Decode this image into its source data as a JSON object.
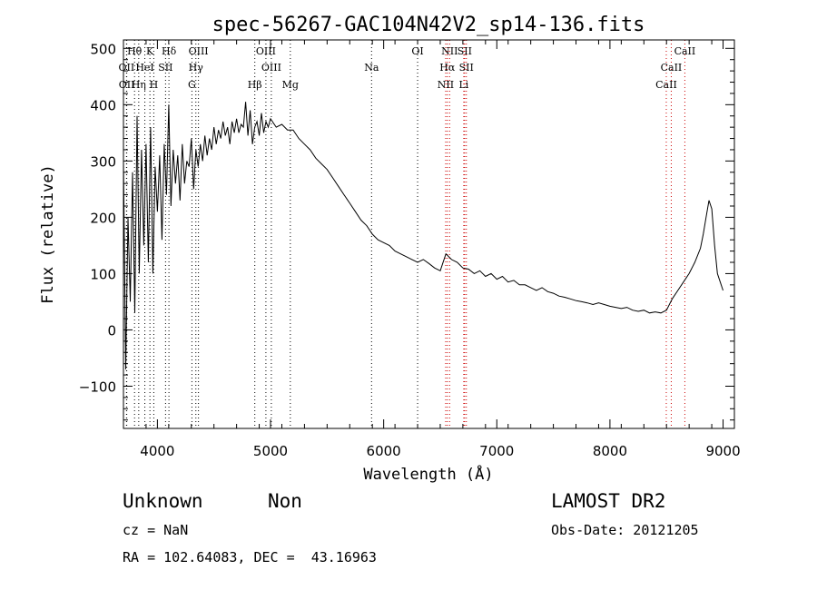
{
  "chart_data": {
    "type": "line",
    "title": "spec-56267-GAC104N42V2_sp14-136.fits",
    "xlabel": "Wavelength (Å)",
    "ylabel": "Flux (relative)",
    "xlim": [
      3700,
      9100
    ],
    "ylim": [
      -175,
      515
    ],
    "xticks": [
      4000,
      5000,
      6000,
      7000,
      8000,
      9000
    ],
    "xtick_labels": [
      "4000",
      "5000",
      "6000",
      "7000",
      "8000",
      "9000"
    ],
    "yticks": [
      -100,
      0,
      100,
      200,
      300,
      400,
      500
    ],
    "ytick_labels": [
      "−100",
      "0",
      "100",
      "200",
      "300",
      "400",
      "500"
    ],
    "grid": false,
    "line_color": "#000000",
    "marker_color_black": "#000000",
    "marker_color_red": "#cc0000",
    "series": [
      {
        "x": [
          3700,
          3720,
          3740,
          3760,
          3780,
          3800,
          3820,
          3840,
          3860,
          3880,
          3900,
          3920,
          3940,
          3960,
          3980,
          4000,
          4020,
          4040,
          4060,
          4080,
          4100,
          4120,
          4140,
          4160,
          4180,
          4200,
          4220,
          4240,
          4260,
          4280,
          4300,
          4320,
          4340,
          4360,
          4380,
          4400,
          4420,
          4440,
          4460,
          4480,
          4500,
          4520,
          4540,
          4560,
          4580,
          4600,
          4620,
          4640,
          4660,
          4680,
          4700,
          4720,
          4740,
          4760,
          4780,
          4800,
          4820,
          4840,
          4860,
          4880,
          4900,
          4920,
          4940,
          4960,
          4980,
          5000,
          5050,
          5100,
          5150,
          5200,
          5250,
          5300,
          5350,
          5400,
          5450,
          5500,
          5550,
          5600,
          5650,
          5700,
          5750,
          5800,
          5850,
          5900,
          5950,
          6000,
          6050,
          6100,
          6150,
          6200,
          6250,
          6300,
          6350,
          6400,
          6450,
          6500,
          6550,
          6600,
          6650,
          6700,
          6750,
          6800,
          6850,
          6900,
          6950,
          7000,
          7050,
          7100,
          7150,
          7200,
          7250,
          7300,
          7350,
          7400,
          7450,
          7500,
          7550,
          7600,
          7650,
          7700,
          7750,
          7800,
          7850,
          7900,
          7950,
          8000,
          8050,
          8100,
          8150,
          8200,
          8250,
          8300,
          8350,
          8400,
          8450,
          8500,
          8550,
          8600,
          8650,
          8700,
          8750,
          8800,
          8825,
          8850,
          8875,
          8900,
          8925,
          8950,
          8975,
          9000
        ],
        "y": [
          300,
          -70,
          200,
          50,
          280,
          30,
          380,
          100,
          320,
          150,
          330,
          120,
          360,
          100,
          290,
          210,
          310,
          160,
          330,
          240,
          400,
          220,
          320,
          260,
          310,
          230,
          330,
          260,
          300,
          290,
          340,
          250,
          320,
          290,
          330,
          300,
          345,
          310,
          340,
          320,
          360,
          330,
          355,
          340,
          370,
          345,
          360,
          330,
          370,
          350,
          375,
          350,
          365,
          360,
          405,
          345,
          390,
          330,
          360,
          370,
          345,
          385,
          350,
          370,
          360,
          375,
          360,
          365,
          355,
          355,
          340,
          330,
          320,
          305,
          295,
          285,
          270,
          255,
          240,
          225,
          210,
          195,
          185,
          170,
          160,
          155,
          150,
          140,
          135,
          130,
          125,
          120,
          125,
          118,
          110,
          105,
          135,
          125,
          120,
          110,
          108,
          100,
          105,
          95,
          100,
          90,
          95,
          85,
          88,
          80,
          80,
          75,
          70,
          75,
          68,
          65,
          60,
          58,
          55,
          52,
          50,
          48,
          45,
          48,
          45,
          42,
          40,
          38,
          40,
          35,
          33,
          35,
          30,
          32,
          30,
          35,
          55,
          70,
          85,
          100,
          120,
          145,
          170,
          200,
          230,
          215,
          150,
          100,
          85,
          70
        ]
      }
    ],
    "line_markers": [
      {
        "label": "Hθ",
        "x": 3798,
        "row": 0,
        "color": "#000000"
      },
      {
        "label": "K",
        "x": 3934,
        "row": 0,
        "color": "#000000"
      },
      {
        "label": "Hδ",
        "x": 4102,
        "row": 0,
        "color": "#000000"
      },
      {
        "label": "OIII",
        "x": 4363,
        "row": 0,
        "color": "#000000"
      },
      {
        "label": "OIII",
        "x": 4959,
        "row": 0,
        "color": "#000000"
      },
      {
        "label": "OI",
        "x": 6300,
        "row": 0,
        "color": "#000000"
      },
      {
        "label": "NII",
        "x": 6583,
        "row": 0,
        "color": "#cc0000"
      },
      {
        "label": "SII",
        "x": 6716,
        "row": 0,
        "color": "#cc0000"
      },
      {
        "label": "CaII",
        "x": 8662,
        "row": 0,
        "color": "#cc0000"
      },
      {
        "label": "OII",
        "x": 3727,
        "row": 1,
        "color": "#000000"
      },
      {
        "label": "HeI",
        "x": 3889,
        "row": 1,
        "color": "#000000"
      },
      {
        "label": "SII",
        "x": 4072,
        "row": 1,
        "color": "#000000"
      },
      {
        "label": "Hγ",
        "x": 4340,
        "row": 1,
        "color": "#000000"
      },
      {
        "label": "OIII",
        "x": 5007,
        "row": 1,
        "color": "#000000"
      },
      {
        "label": "Na",
        "x": 5893,
        "row": 1,
        "color": "#000000"
      },
      {
        "label": "Hα",
        "x": 6563,
        "row": 1,
        "color": "#cc0000"
      },
      {
        "label": "SII",
        "x": 6731,
        "row": 1,
        "color": "#cc0000"
      },
      {
        "label": "CaII",
        "x": 8542,
        "row": 1,
        "color": "#cc0000"
      },
      {
        "label": "OII",
        "x": 3729,
        "row": 2,
        "color": "#000000"
      },
      {
        "label": "Hη",
        "x": 3835,
        "row": 2,
        "color": "#000000"
      },
      {
        "label": "H",
        "x": 3968,
        "row": 2,
        "color": "#000000"
      },
      {
        "label": "G",
        "x": 4305,
        "row": 2,
        "color": "#000000"
      },
      {
        "label": "Hβ",
        "x": 4861,
        "row": 2,
        "color": "#000000"
      },
      {
        "label": "Mg",
        "x": 5175,
        "row": 2,
        "color": "#000000"
      },
      {
        "label": "NII",
        "x": 6548,
        "row": 2,
        "color": "#cc0000"
      },
      {
        "label": "Li",
        "x": 6708,
        "row": 2,
        "color": "#cc0000"
      },
      {
        "label": "CaII",
        "x": 8498,
        "row": 2,
        "color": "#cc0000"
      }
    ]
  },
  "info": {
    "class": "Unknown",
    "subclass": "Non",
    "survey": "LAMOST DR2",
    "cz": "cz = NaN",
    "obs_date": "Obs-Date: 20121205",
    "coords": "RA = 102.64083, DEC =  43.16963"
  }
}
